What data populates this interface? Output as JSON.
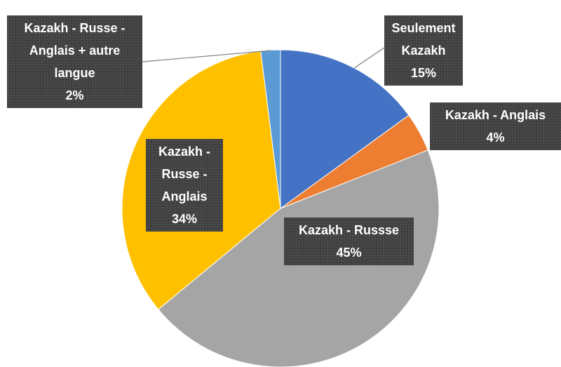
{
  "chart_data": {
    "type": "pie",
    "categories": [
      "Seulement Kazakh",
      "Kazakh - Anglais",
      "Kazakh - Russse",
      "Kazakh - Russe - Anglais",
      "Kazakh - Russe - Anglais + autre langue"
    ],
    "values": [
      15,
      4,
      45,
      34,
      2
    ],
    "value_labels": [
      "15%",
      "4%",
      "45%",
      "34%",
      "2%"
    ],
    "colors": [
      "#4472c4",
      "#ed7d31",
      "#a5a5a5",
      "#ffc000",
      "#5b9bd5"
    ]
  }
}
